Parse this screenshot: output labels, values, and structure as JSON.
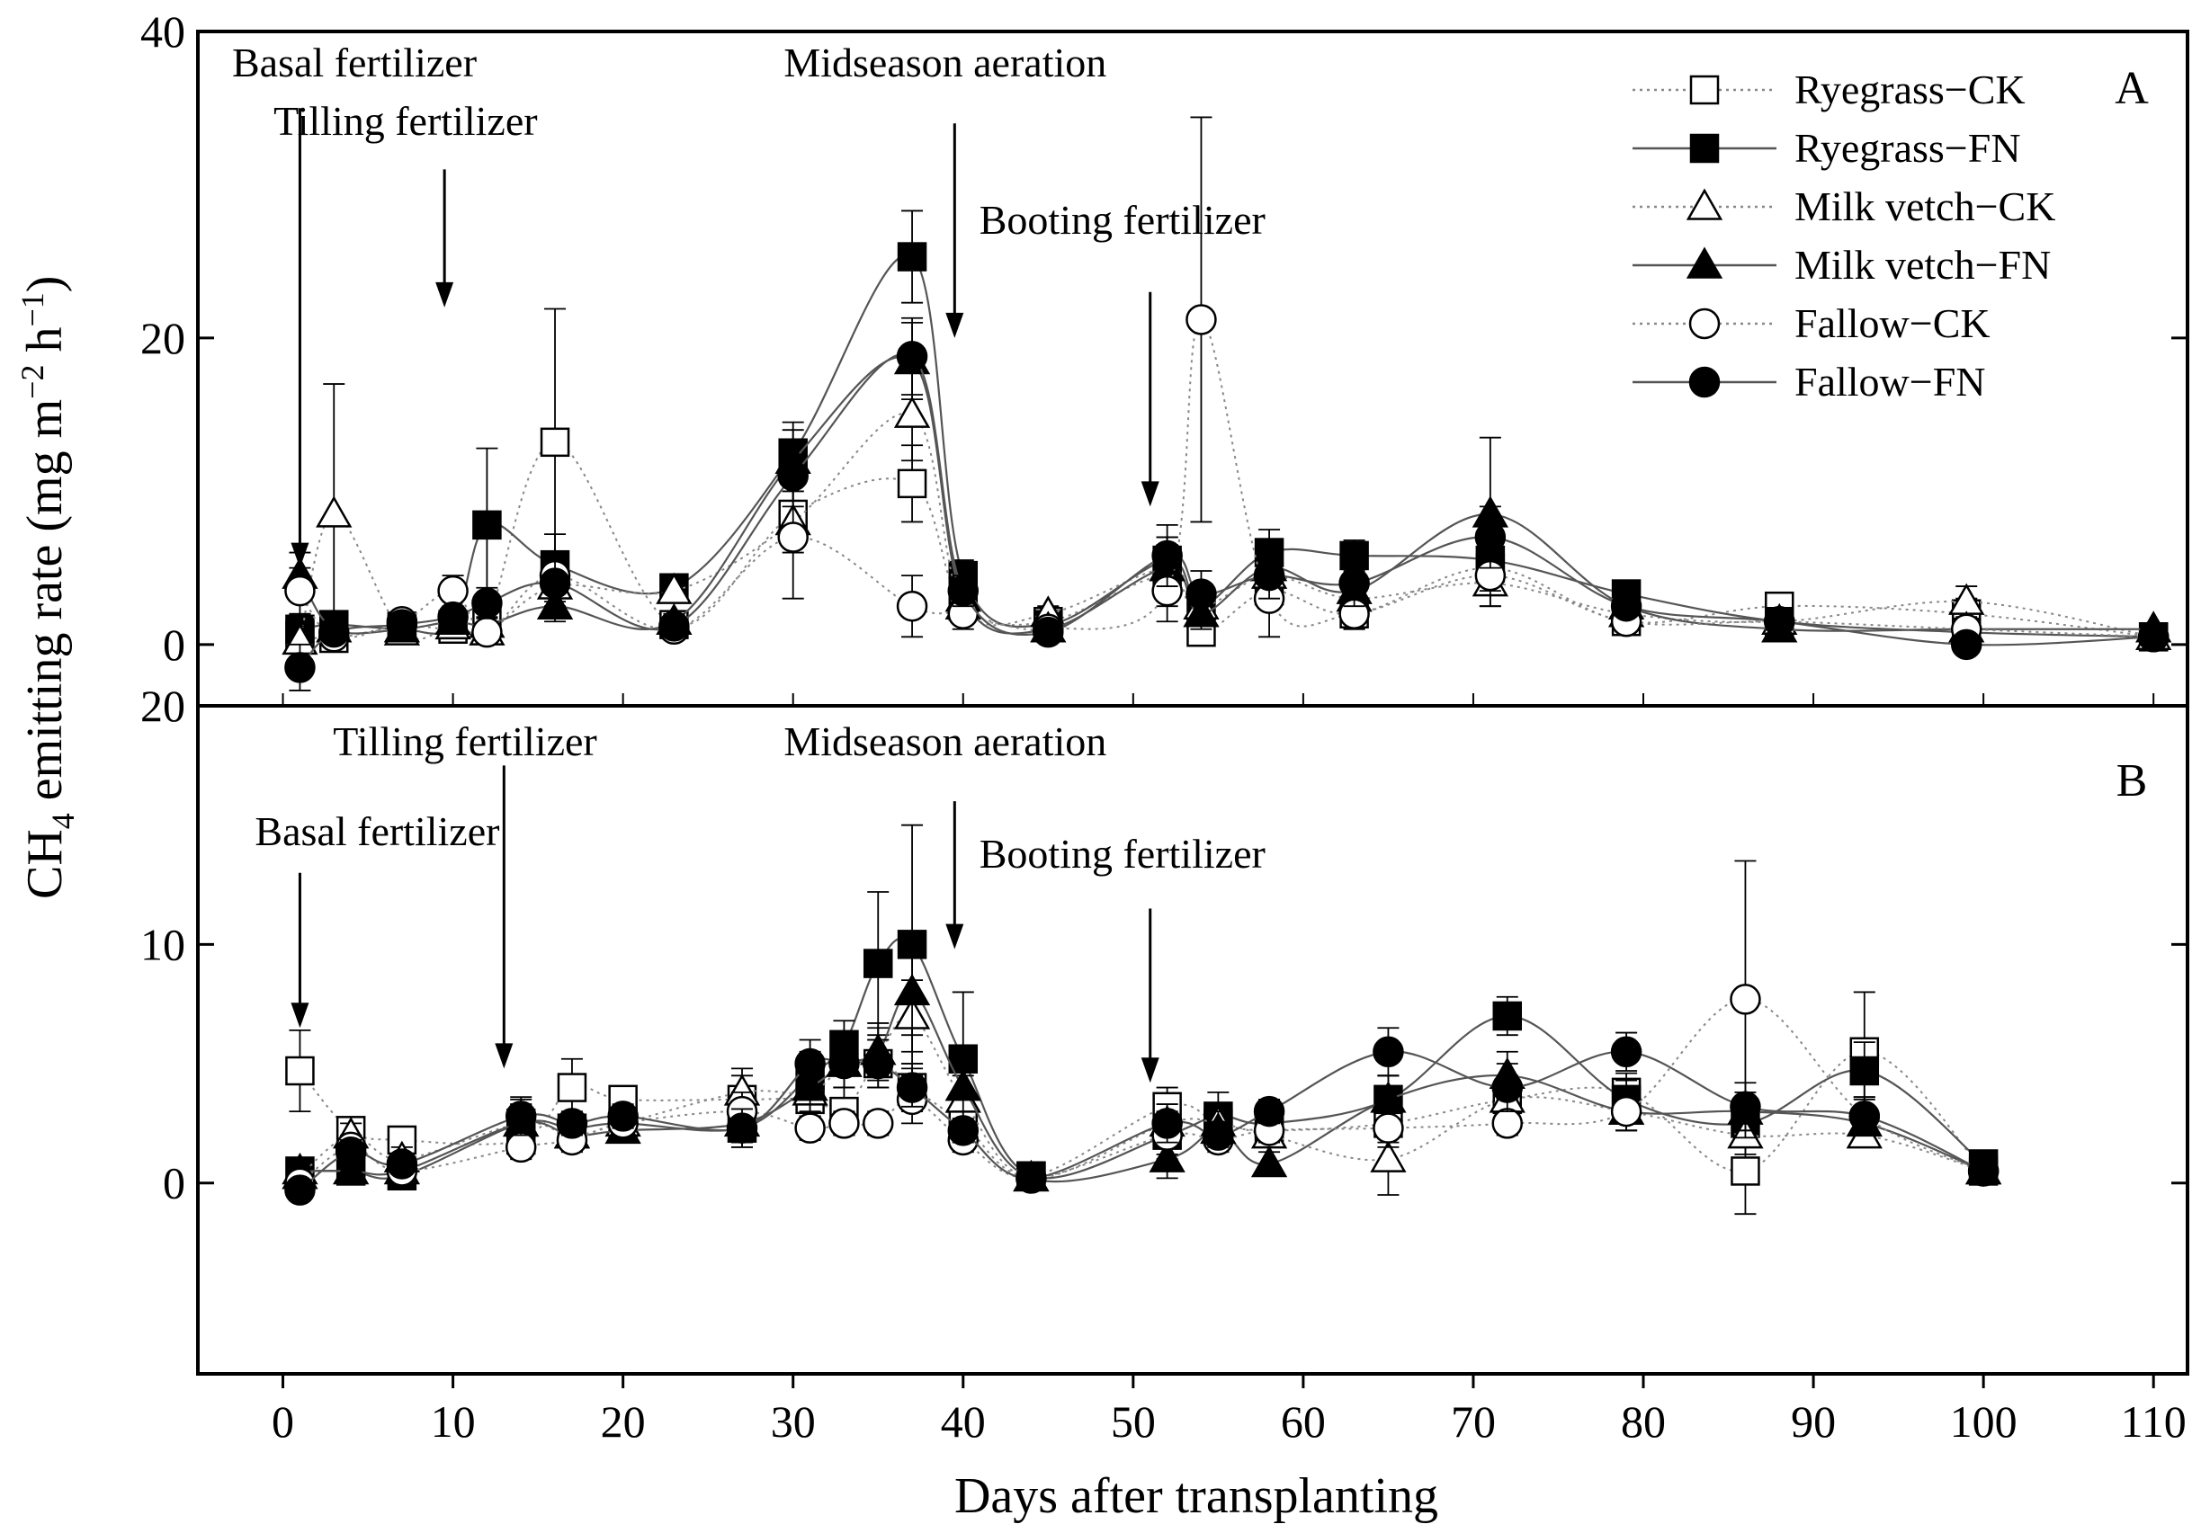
{
  "ylabel": {
    "main": "CH",
    "sub": "4",
    "rest": " emitting rate (mg m",
    "sup1": "−2",
    "mid": " h",
    "sup2": "−1",
    "end": ")"
  },
  "xlabel": "Days after transplanting",
  "xlim": [
    -5,
    112
  ],
  "xticks": [
    0,
    10,
    20,
    30,
    40,
    50,
    60,
    70,
    80,
    90,
    100,
    110
  ],
  "legend": {
    "placement": "top-right of panel A",
    "entries": [
      {
        "label": "Ryegrass−CK",
        "series": "ryegrass_ck"
      },
      {
        "label": "Ryegrass−FN",
        "series": "ryegrass_fn"
      },
      {
        "label": "Milk vetch−CK",
        "series": "milkvetch_ck"
      },
      {
        "label": "Milk vetch−FN",
        "series": "milkvetch_fn"
      },
      {
        "label": "Fallow−CK",
        "series": "fallow_ck"
      },
      {
        "label": "Fallow−FN",
        "series": "fallow_fn"
      }
    ]
  },
  "series_style": {
    "ryegrass_ck": {
      "marker": "square",
      "fill": "open",
      "line": "dotted"
    },
    "ryegrass_fn": {
      "marker": "square",
      "fill": "filled",
      "line": "solid"
    },
    "milkvetch_ck": {
      "marker": "triangle",
      "fill": "open",
      "line": "dotted"
    },
    "milkvetch_fn": {
      "marker": "triangle",
      "fill": "filled",
      "line": "solid"
    },
    "fallow_ck": {
      "marker": "circle",
      "fill": "open",
      "line": "dotted"
    },
    "fallow_fn": {
      "marker": "circle",
      "fill": "filled",
      "line": "solid"
    }
  },
  "colors": {
    "ink": "#000000",
    "open_fill": "#ffffff",
    "line": "#555555",
    "dotted": "#888888"
  },
  "chart_data": [
    {
      "type": "line",
      "panel_label": "A",
      "ylim": [
        -4,
        40
      ],
      "yticks": [
        0,
        20,
        40
      ],
      "ytick_labels": [
        "0",
        "20",
        "40"
      ],
      "annotations": [
        {
          "label": "Basal fertilizer",
          "x": 1,
          "arrow_from": 35,
          "arrow_to": 5
        },
        {
          "label": "Tilling fertilizer",
          "x": 9.5,
          "arrow_from": 31,
          "arrow_to": 22
        },
        {
          "label": "Midseason aeration",
          "x": 39.5,
          "arrow_from": 34,
          "arrow_to": 20
        },
        {
          "label": "Booting fertilizer",
          "x": 51,
          "arrow_from": 23,
          "arrow_to": 9
        }
      ],
      "series": [
        {
          "key": "ryegrass_ck",
          "name": "Ryegrass−CK",
          "x": [
            1,
            3,
            7,
            10,
            12,
            16,
            23,
            30,
            37,
            40,
            45,
            52,
            54,
            58,
            63,
            71,
            79,
            88,
            99,
            110
          ],
          "y": [
            0.6,
            0.4,
            1.2,
            1.0,
            1.5,
            13.2,
            1.3,
            8.5,
            10.5,
            2.5,
            1.5,
            4.5,
            0.8,
            3.5,
            2.0,
            5.0,
            1.5,
            2.5,
            2.0,
            0.5
          ],
          "err": [
            1,
            0.5,
            0.5,
            0.5,
            1,
            8.7,
            0.5,
            2,
            2.5,
            1,
            0.5,
            2,
            0.5,
            1,
            1,
            1.5,
            0.5,
            0.5,
            1,
            0.3
          ]
        },
        {
          "key": "ryegrass_fn",
          "name": "Ryegrass−FN",
          "x": [
            1,
            3,
            7,
            10,
            12,
            16,
            23,
            30,
            37,
            40,
            45,
            52,
            54,
            58,
            63,
            71,
            79,
            88,
            99,
            110
          ],
          "y": [
            1.0,
            1.3,
            1.0,
            1.3,
            7.8,
            5.2,
            3.7,
            12.5,
            25.3,
            4.5,
            1.3,
            5.5,
            2.5,
            6.0,
            5.8,
            5.5,
            3.3,
            1.5,
            0.8,
            0.5
          ],
          "err": [
            1,
            0.5,
            0.5,
            0.5,
            5,
            2,
            0.5,
            2,
            3,
            1,
            0.5,
            1.5,
            1,
            1.5,
            1,
            1.5,
            0.5,
            0.5,
            0.3,
            0.3
          ]
        },
        {
          "key": "milkvetch_ck",
          "name": "Milk vetch−CK",
          "x": [
            1,
            3,
            7,
            10,
            12,
            16,
            23,
            30,
            37,
            40,
            45,
            52,
            54,
            58,
            63,
            71,
            79,
            88,
            99,
            110
          ],
          "y": [
            0.2,
            8.5,
            0.8,
            1.2,
            0.8,
            3.8,
            3.5,
            8.0,
            15.0,
            2.5,
            2.0,
            5.0,
            2.5,
            4.5,
            3.0,
            4.0,
            2.0,
            1.5,
            2.8,
            0.5
          ],
          "err": [
            1,
            8.5,
            0.5,
            0.5,
            0.5,
            1,
            0.5,
            2,
            3,
            1,
            0.5,
            2,
            1,
            1,
            1,
            1.5,
            0.5,
            0.5,
            1,
            0.3
          ]
        },
        {
          "key": "milkvetch_fn",
          "name": "Milk vetch−FN",
          "x": [
            1,
            3,
            7,
            10,
            12,
            16,
            23,
            30,
            37,
            40,
            45,
            52,
            54,
            58,
            63,
            71,
            79,
            88,
            99,
            110
          ],
          "y": [
            4.5,
            1.0,
            1.0,
            1.5,
            1.3,
            2.5,
            1.5,
            12.0,
            18.5,
            3.0,
            1.0,
            5.0,
            2.0,
            5.0,
            3.5,
            8.5,
            2.5,
            1.0,
            1.0,
            1.0
          ],
          "err": [
            1.5,
            0.5,
            0.5,
            0.5,
            0.5,
            1,
            0.5,
            2,
            2.5,
            1,
            0.5,
            2,
            1,
            1.5,
            1,
            5,
            0.5,
            0.5,
            0.5,
            0.3
          ]
        },
        {
          "key": "fallow_ck",
          "name": "Fallow−CK",
          "x": [
            1,
            3,
            7,
            10,
            12,
            16,
            23,
            30,
            37,
            40,
            45,
            52,
            54,
            58,
            63,
            71,
            79,
            88,
            99,
            110
          ],
          "y": [
            3.5,
            0.5,
            1.5,
            3.5,
            0.8,
            4.5,
            1.0,
            7.0,
            2.5,
            2.0,
            1.0,
            3.5,
            21.2,
            3.0,
            2.0,
            4.5,
            1.5,
            1.5,
            1.0,
            0.5
          ],
          "err": [
            1.5,
            0.5,
            0.5,
            1,
            0.5,
            1,
            0.5,
            4,
            2,
            1,
            0.5,
            2,
            13.2,
            2.5,
            1,
            2,
            0.5,
            0.5,
            0.5,
            0.3
          ]
        },
        {
          "key": "fallow_fn",
          "name": "Fallow−FN",
          "x": [
            1,
            3,
            7,
            10,
            12,
            16,
            23,
            30,
            37,
            40,
            45,
            52,
            54,
            58,
            63,
            71,
            79,
            88,
            99,
            110
          ],
          "y": [
            -1.5,
            0.8,
            1.3,
            1.8,
            2.7,
            4.0,
            1.2,
            11.0,
            18.8,
            3.5,
            0.8,
            5.8,
            3.3,
            4.5,
            4.0,
            7.0,
            2.5,
            1.5,
            0.0,
            0.5
          ],
          "err": [
            1.5,
            0.5,
            0.5,
            0.5,
            1,
            1.5,
            0.5,
            2,
            2.5,
            1,
            0.5,
            2,
            1.5,
            1.5,
            1.5,
            2,
            0.5,
            0.5,
            0.5,
            0.3
          ]
        }
      ]
    },
    {
      "type": "line",
      "panel_label": "B",
      "ylim": [
        -8,
        20
      ],
      "yticks": [
        0,
        10,
        20
      ],
      "ytick_labels": [
        "0",
        "10",
        "20"
      ],
      "annotations": [
        {
          "label": "Basal fertilizer",
          "x": 1,
          "arrow_from": 13,
          "arrow_to": 6.5
        },
        {
          "label": "Tilling fertilizer",
          "x": 13,
          "arrow_from": 17.5,
          "arrow_to": 4.8
        },
        {
          "label": "Midseason aeration",
          "x": 39.5,
          "arrow_from": 16,
          "arrow_to": 9.8
        },
        {
          "label": "Booting fertilizer",
          "x": 51,
          "arrow_from": 11.5,
          "arrow_to": 4.2
        }
      ],
      "series": [
        {
          "key": "ryegrass_ck",
          "name": "Ryegrass−CK",
          "x": [
            1,
            4,
            7,
            14,
            17,
            20,
            27,
            31,
            33,
            35,
            37,
            40,
            44,
            52,
            55,
            58,
            65,
            72,
            79,
            86,
            93,
            100
          ],
          "y": [
            4.7,
            2.2,
            1.8,
            1.8,
            4.0,
            3.5,
            3.5,
            3.5,
            3.0,
            5.0,
            4.0,
            2.5,
            0.3,
            3.2,
            2.5,
            2.2,
            2.5,
            3.5,
            3.8,
            0.5,
            5.5,
            0.5
          ],
          "err": [
            1.7,
            0.5,
            0.5,
            0.5,
            1.2,
            0.5,
            1,
            1,
            1,
            1,
            1,
            1,
            0.3,
            0.8,
            0.8,
            0.5,
            0.8,
            1,
            0.8,
            1.8,
            2.5,
            0.3
          ]
        },
        {
          "key": "ryegrass_fn",
          "name": "Ryegrass−FN",
          "x": [
            1,
            4,
            7,
            14,
            17,
            20,
            27,
            31,
            33,
            35,
            37,
            40,
            44,
            52,
            55,
            58,
            65,
            72,
            79,
            86,
            93,
            100
          ],
          "y": [
            0.5,
            0.5,
            0.3,
            2.5,
            2.3,
            2.5,
            2.3,
            4.5,
            5.8,
            9.2,
            10.0,
            5.2,
            0.3,
            2.0,
            2.8,
            2.5,
            3.5,
            7.0,
            3.5,
            2.5,
            4.7,
            0.8
          ],
          "err": [
            0.5,
            0.5,
            0.3,
            1,
            0.5,
            0.5,
            0.8,
            1,
            1,
            3,
            5,
            2.8,
            0.3,
            1,
            1,
            0.8,
            1,
            0.8,
            0.8,
            0.8,
            1.2,
            0.3
          ]
        },
        {
          "key": "milkvetch_ck",
          "name": "Milk vetch−CK",
          "x": [
            1,
            4,
            7,
            14,
            17,
            20,
            27,
            31,
            33,
            35,
            37,
            40,
            44,
            52,
            55,
            58,
            65,
            72,
            79,
            86,
            93,
            100
          ],
          "y": [
            0.3,
            2.0,
            1.0,
            2.5,
            2.0,
            2.5,
            3.8,
            3.8,
            5.0,
            5.5,
            7.0,
            3.5,
            0.2,
            2.5,
            2.5,
            2.0,
            1.0,
            3.5,
            3.0,
            2.0,
            2.0,
            0.5
          ],
          "err": [
            0.3,
            0.5,
            0.5,
            0.8,
            0.5,
            0.5,
            1,
            1,
            1,
            1,
            1.5,
            1,
            0.2,
            0.8,
            0.8,
            0.5,
            1.5,
            1,
            0.8,
            0.8,
            0.5,
            0.3
          ]
        },
        {
          "key": "milkvetch_fn",
          "name": "Milk vetch−FN",
          "x": [
            1,
            4,
            7,
            14,
            17,
            20,
            27,
            31,
            33,
            35,
            37,
            40,
            44,
            52,
            55,
            58,
            65,
            72,
            79,
            86,
            93,
            100
          ],
          "y": [
            0.5,
            0.5,
            0.5,
            2.5,
            2.0,
            2.2,
            2.5,
            4.0,
            5.0,
            5.5,
            8.0,
            4.0,
            0.2,
            1.0,
            2.2,
            0.8,
            3.5,
            4.5,
            3.0,
            3.0,
            2.5,
            0.5
          ],
          "err": [
            0.3,
            0.3,
            0.3,
            0.8,
            0.5,
            0.5,
            0.8,
            1,
            1,
            1.2,
            1.8,
            1,
            0.2,
            0.8,
            0.8,
            0.5,
            1,
            1,
            0.8,
            0.8,
            0.5,
            0.3
          ]
        },
        {
          "key": "fallow_ck",
          "name": "Fallow−CK",
          "x": [
            1,
            4,
            7,
            14,
            17,
            20,
            27,
            31,
            33,
            35,
            37,
            40,
            44,
            52,
            55,
            58,
            65,
            72,
            79,
            86,
            93,
            100
          ],
          "y": [
            0.0,
            1.5,
            0.5,
            1.5,
            1.8,
            2.5,
            3.0,
            2.3,
            2.5,
            2.5,
            3.5,
            1.8,
            0.2,
            2.0,
            1.8,
            2.2,
            2.3,
            2.5,
            3.0,
            7.7,
            2.8,
            0.5
          ],
          "err": [
            0.3,
            0.5,
            0.3,
            0.5,
            0.5,
            0.5,
            0.8,
            0.5,
            0.5,
            0.5,
            1,
            0.5,
            0.2,
            0.8,
            0.5,
            0.5,
            0.8,
            0.5,
            0.8,
            5.8,
            0.8,
            0.3
          ]
        },
        {
          "key": "fallow_fn",
          "name": "Fallow−FN",
          "x": [
            1,
            4,
            7,
            14,
            17,
            20,
            27,
            31,
            33,
            35,
            37,
            40,
            44,
            52,
            55,
            58,
            65,
            72,
            79,
            86,
            93,
            100
          ],
          "y": [
            -0.3,
            1.3,
            0.8,
            2.8,
            2.5,
            2.8,
            2.3,
            5.0,
            5.0,
            5.0,
            4.0,
            2.2,
            0.2,
            2.5,
            2.0,
            3.0,
            5.5,
            4.0,
            5.5,
            3.2,
            2.8,
            0.5
          ],
          "err": [
            0.3,
            0.5,
            0.3,
            0.8,
            0.5,
            0.5,
            0.8,
            1,
            1,
            1,
            0.8,
            0.5,
            0.2,
            0.8,
            0.5,
            0.5,
            1,
            1,
            0.8,
            1,
            0.8,
            0.3
          ]
        }
      ]
    }
  ]
}
